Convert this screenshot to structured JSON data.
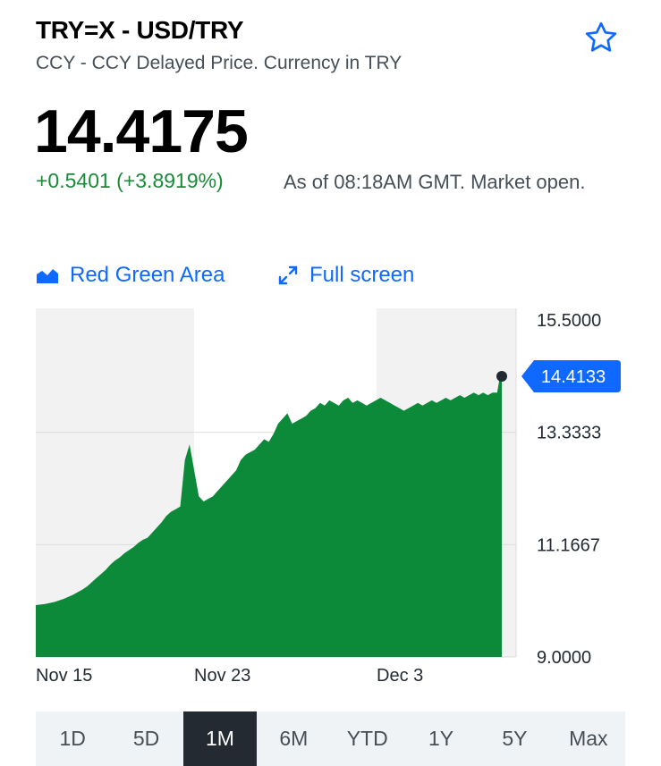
{
  "header": {
    "title": "TRY=X - USD/TRY",
    "subtitle": "CCY - CCY Delayed Price. Currency in TRY"
  },
  "quote": {
    "price": "14.4175",
    "change": "+0.5401 (+3.8919%)",
    "as_of": "As of 08:18AM GMT. Market open."
  },
  "toolbar": {
    "chart_type_label": "Red Green Area",
    "fullscreen_label": "Full screen"
  },
  "colors": {
    "accent": "#0f69ff",
    "positive": "#1a8a3a",
    "area_fill": "#0c8a3a",
    "active_tab_bg": "#232a31"
  },
  "icons": {
    "watchlist": "star-icon",
    "chart_type": "area-chart-icon",
    "fullscreen": "expand-icon"
  },
  "chart_data": {
    "type": "area",
    "ylim": [
      9.0,
      15.5
    ],
    "y_ticks": [
      "15.5000",
      "13.3333",
      "11.1667",
      "9.0000"
    ],
    "x_ticks": [
      "Nov 15",
      "Nov 23",
      "Dec 3"
    ],
    "current_value_label": "14.4133",
    "x": [
      0,
      2,
      4,
      6,
      8,
      10,
      11,
      12,
      13,
      14,
      15,
      16,
      17,
      18,
      19,
      20,
      21,
      22,
      23,
      24,
      25,
      26,
      27,
      28,
      29,
      30,
      31,
      32,
      33,
      34,
      35,
      36,
      37,
      38,
      39,
      40,
      41,
      42,
      43,
      44,
      45,
      46,
      47,
      48,
      49,
      50,
      51,
      52,
      53,
      54,
      55,
      56,
      57,
      58,
      59,
      60,
      61,
      62,
      63,
      64,
      65,
      66,
      67,
      68,
      69,
      70,
      71,
      72,
      73,
      74,
      75,
      76,
      77,
      78,
      79,
      80,
      81,
      82,
      83,
      84,
      85,
      86,
      87,
      88,
      89,
      90,
      91,
      92,
      93,
      94,
      95,
      96,
      97,
      98,
      99,
      99.6,
      100
    ],
    "values": [
      10.0,
      10.02,
      10.06,
      10.12,
      10.2,
      10.3,
      10.36,
      10.44,
      10.52,
      10.6,
      10.68,
      10.78,
      10.86,
      10.92,
      11.0,
      11.06,
      11.12,
      11.2,
      11.26,
      11.3,
      11.4,
      11.5,
      11.6,
      11.72,
      11.8,
      11.85,
      11.9,
      12.8,
      13.1,
      12.6,
      12.1,
      12.0,
      12.05,
      12.1,
      12.2,
      12.3,
      12.4,
      12.5,
      12.6,
      12.8,
      12.9,
      12.95,
      13.0,
      13.1,
      13.2,
      13.15,
      13.3,
      13.5,
      13.6,
      13.7,
      13.5,
      13.55,
      13.6,
      13.65,
      13.75,
      13.8,
      13.9,
      13.85,
      13.95,
      13.9,
      13.85,
      13.95,
      14.0,
      13.9,
      13.95,
      13.9,
      13.85,
      13.9,
      13.95,
      14.0,
      13.95,
      13.9,
      13.85,
      13.8,
      13.75,
      13.8,
      13.85,
      13.9,
      13.85,
      13.9,
      13.95,
      13.9,
      13.95,
      14.0,
      13.95,
      14.0,
      14.05,
      14.0,
      14.05,
      14.1,
      14.05,
      14.1,
      14.05,
      14.1,
      14.1,
      14.41,
      14.41
    ]
  },
  "range_tabs": [
    {
      "label": "1D"
    },
    {
      "label": "5D"
    },
    {
      "label": "1M"
    },
    {
      "label": "6M"
    },
    {
      "label": "YTD"
    },
    {
      "label": "1Y"
    },
    {
      "label": "5Y"
    },
    {
      "label": "Max"
    }
  ],
  "active_range": "1M"
}
